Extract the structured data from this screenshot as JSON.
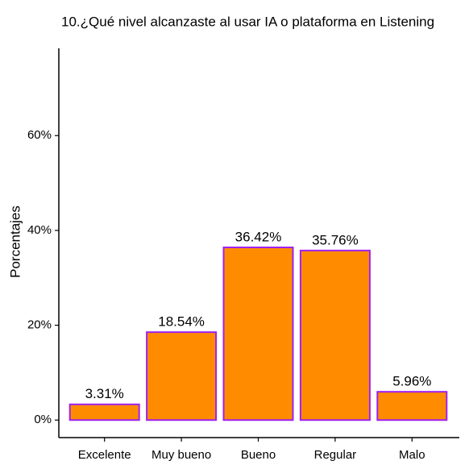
{
  "chart_data": {
    "type": "bar",
    "title": "10.¿Qué nivel alcanzaste al usar IA o plataforma en Listening",
    "y_label": "Porcentajes",
    "categories": [
      "Excelente",
      "Muy bueno",
      "Bueno",
      "Regular",
      "Malo"
    ],
    "values": [
      3.31,
      18.54,
      36.42,
      35.76,
      5.96
    ],
    "value_labels": [
      "3.31%",
      "18.54%",
      "36.42%",
      "35.76%",
      "5.96%"
    ],
    "color": "#ff8c00",
    "edge_color": "#a020f0",
    "ylim": [
      -3.7,
      78.4
    ],
    "yticks": [
      {
        "value": 0,
        "label": "0%"
      },
      {
        "value": 20,
        "label": "20%"
      },
      {
        "value": 40,
        "label": "40%"
      },
      {
        "value": 60,
        "label": "60%"
      }
    ],
    "grid": false
  }
}
